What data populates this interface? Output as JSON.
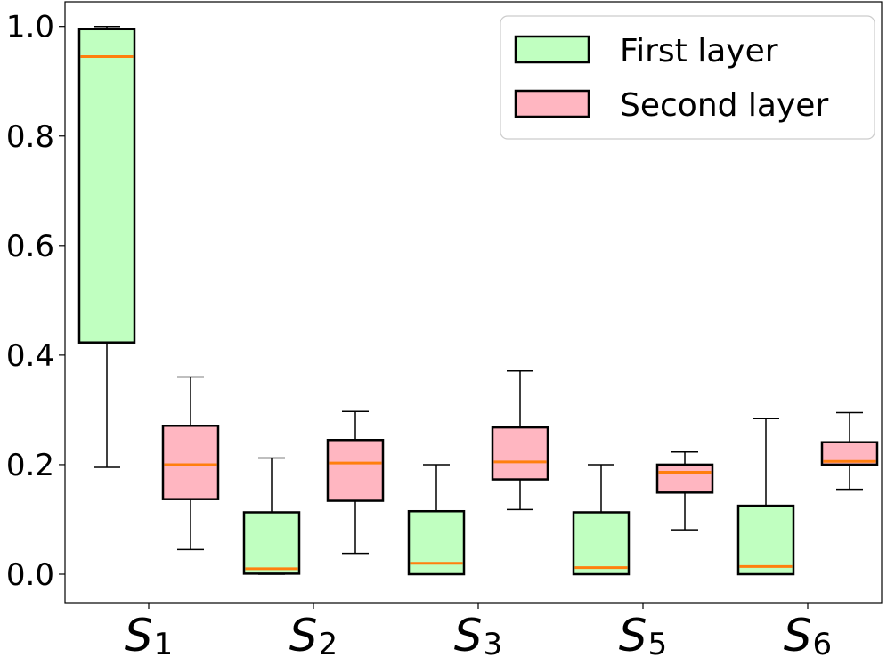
{
  "chart_data": {
    "type": "boxplot",
    "categories": [
      {
        "base": "S",
        "sub": "1"
      },
      {
        "base": "S",
        "sub": "2"
      },
      {
        "base": "S",
        "sub": "3"
      },
      {
        "base": "S",
        "sub": "5"
      },
      {
        "base": "S",
        "sub": "6"
      }
    ],
    "series": [
      {
        "name": "First layer",
        "fill": "#c0ffc0",
        "boxes": [
          {
            "whislo": 0.195,
            "q1": 0.423,
            "med": 0.945,
            "q3": 0.995,
            "whishi": 1.0
          },
          {
            "whislo": 0.0,
            "q1": 0.001,
            "med": 0.01,
            "q3": 0.113,
            "whishi": 0.212
          },
          {
            "whislo": 0.0,
            "q1": 0.0,
            "med": 0.02,
            "q3": 0.115,
            "whishi": 0.2
          },
          {
            "whislo": 0.0,
            "q1": 0.0,
            "med": 0.012,
            "q3": 0.113,
            "whishi": 0.2
          },
          {
            "whislo": 0.0,
            "q1": 0.0,
            "med": 0.014,
            "q3": 0.125,
            "whishi": 0.284
          }
        ]
      },
      {
        "name": "Second layer",
        "fill": "#ffb6c1",
        "boxes": [
          {
            "whislo": 0.045,
            "q1": 0.137,
            "med": 0.2,
            "q3": 0.271,
            "whishi": 0.36
          },
          {
            "whislo": 0.038,
            "q1": 0.134,
            "med": 0.203,
            "q3": 0.245,
            "whishi": 0.297
          },
          {
            "whislo": 0.118,
            "q1": 0.173,
            "med": 0.205,
            "q3": 0.268,
            "whishi": 0.371
          },
          {
            "whislo": 0.081,
            "q1": 0.149,
            "med": 0.186,
            "q3": 0.2,
            "whishi": 0.223
          },
          {
            "whislo": 0.155,
            "q1": 0.2,
            "med": 0.206,
            "q3": 0.241,
            "whishi": 0.295
          }
        ]
      }
    ],
    "median_color": "#ff7f0e",
    "ylim": [
      -0.052,
      1.045
    ],
    "yticks": [
      "0.0",
      "0.2",
      "0.4",
      "0.6",
      "0.8",
      "1.0"
    ],
    "legend_position": "top-right",
    "grid": false
  }
}
